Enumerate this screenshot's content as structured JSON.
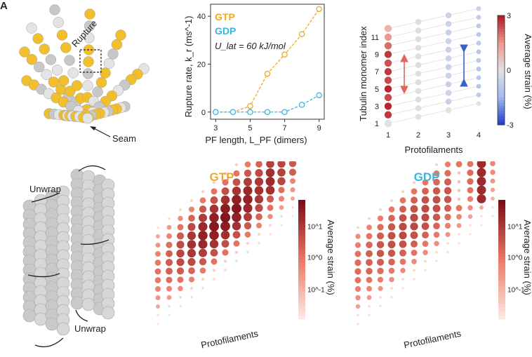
{
  "panel_labels": {
    "a": "A"
  },
  "panel_a": {
    "rupture_label": "Rupture",
    "seam_label": "Seam"
  },
  "panel_e": {
    "unwrap_top": "Unwrap",
    "unwrap_bottom": "Unwrap"
  },
  "colors": {
    "gtp": "#f0a824",
    "gdp": "#3db4e0",
    "bead_gold": "#f2bf2c",
    "bead_white": "#e4e4e4",
    "bead_grey": "#c8c8c8",
    "up_arrow": "#e0675a",
    "down_arrow": "#3a62c8"
  },
  "chart_data": [
    {
      "type": "line",
      "id": "rupture-rate",
      "xlabel": "PF length, L_PF (dimers)",
      "ylabel": "Rupture rate, k_r (ms^-1)",
      "xlim": [
        2.7,
        9.3
      ],
      "ylim": [
        -3,
        45
      ],
      "xticks": [
        3,
        5,
        7,
        9
      ],
      "yticks": [
        0,
        20,
        40
      ],
      "annotation": "U_lat = 60 kJ/mol",
      "series": [
        {
          "name": "GTP",
          "x": [
            3,
            4,
            5,
            6,
            7,
            8,
            9
          ],
          "y": [
            0,
            0,
            2.5,
            16,
            24,
            32.5,
            43
          ]
        },
        {
          "name": "GDP",
          "x": [
            3,
            4,
            5,
            6,
            7,
            8,
            9
          ],
          "y": [
            0,
            0,
            0,
            0,
            0,
            3,
            7
          ]
        }
      ]
    },
    {
      "type": "scatter",
      "id": "monomer-strain",
      "xlabel": "Protofilaments",
      "ylabel": "Tubulin monomer index",
      "xticks": [
        1,
        2,
        3,
        4
      ],
      "yticks": [
        1,
        3,
        5,
        7,
        9,
        11
      ],
      "colorbar_label": "Average strain (%)",
      "colorbar_ticks": [
        -3,
        0,
        3
      ],
      "clim": [
        -3,
        3
      ],
      "protofilaments": [
        {
          "pf": 1,
          "strain": [
            0,
            2.6,
            2.8,
            2.4,
            2.8,
            2.4,
            2.6,
            2.3,
            2.6,
            2.0,
            1.4,
            0.9
          ]
        },
        {
          "pf": 2,
          "strain": [
            0,
            0.1,
            0.1,
            0.1,
            0.1,
            0.1,
            0.1,
            0.1,
            0.1,
            0.1,
            0.1,
            0.1
          ]
        },
        {
          "pf": 3,
          "strain": [
            0,
            -0.6,
            -0.5,
            -0.6,
            -0.5,
            -0.6,
            -0.5,
            -0.6,
            -0.5,
            -0.6,
            -0.5,
            -0.5
          ]
        },
        {
          "pf": 4,
          "strain": [
            0,
            -0.8,
            -1.0,
            -0.9,
            -1.0,
            -0.9,
            -1.0,
            -0.9,
            -0.9,
            -0.9,
            -0.8,
            -0.6
          ]
        }
      ]
    },
    {
      "type": "heatmap",
      "id": "gtp-lattice",
      "title": "GTP",
      "xlabel": "Protofilaments",
      "colorbar_label": "Average strain (%)",
      "colorbar_ticks": [
        "10^-1",
        "10^0",
        "10^1"
      ],
      "color_scale": "log",
      "columns": 13,
      "rows": 12
    },
    {
      "type": "heatmap",
      "id": "gdp-lattice",
      "title": "GDP",
      "xlabel": "Protofilaments",
      "colorbar_label": "Average strain (%)",
      "colorbar_ticks": [
        "10^-1",
        "10^0",
        "10^1"
      ],
      "color_scale": "log",
      "columns": 13,
      "rows": 12
    }
  ]
}
